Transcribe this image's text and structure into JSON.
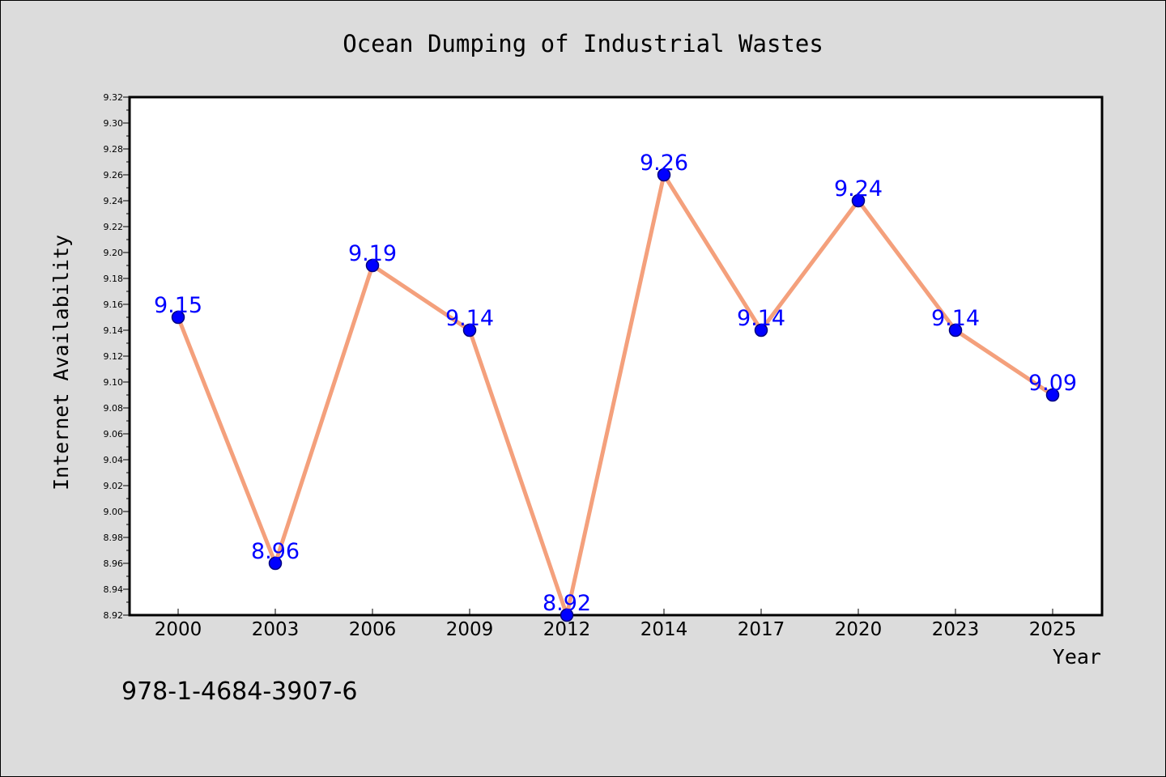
{
  "colors": {
    "background": "#dcdcdc",
    "plot_background": "#ffffff",
    "line": "#f4a07c",
    "marker_fill": "#0000ff",
    "marker_edge": "#000080",
    "data_label": "#0000ff"
  },
  "footer": {
    "isbn": "978-1-4684-3907-6"
  },
  "chart_data": {
    "type": "line",
    "title": "Ocean Dumping of Industrial Wastes",
    "xlabel": "Year",
    "ylabel": "Internet Availability",
    "categories": [
      "2000",
      "2003",
      "2006",
      "2009",
      "2012",
      "2014",
      "2017",
      "2020",
      "2023",
      "2025"
    ],
    "series": [
      {
        "values": [
          9.15,
          8.96,
          9.19,
          9.14,
          8.92,
          9.26,
          9.14,
          9.24,
          9.14,
          9.09
        ],
        "labels": [
          "9.15",
          "8.96",
          "9.19",
          "9.14",
          "8.92",
          "9.26",
          "9.14",
          "9.24",
          "9.14",
          "9.09"
        ]
      }
    ],
    "ylim": [
      8.92,
      9.32
    ],
    "yticks": [
      "8.92",
      "8.94",
      "8.96",
      "8.98",
      "9.00",
      "9.02",
      "9.04",
      "9.06",
      "9.08",
      "9.10",
      "9.12",
      "9.14",
      "9.16",
      "9.18",
      "9.20",
      "9.22",
      "9.24",
      "9.26",
      "9.28",
      "9.30",
      "9.32"
    ],
    "grid": false,
    "legend": "none"
  }
}
